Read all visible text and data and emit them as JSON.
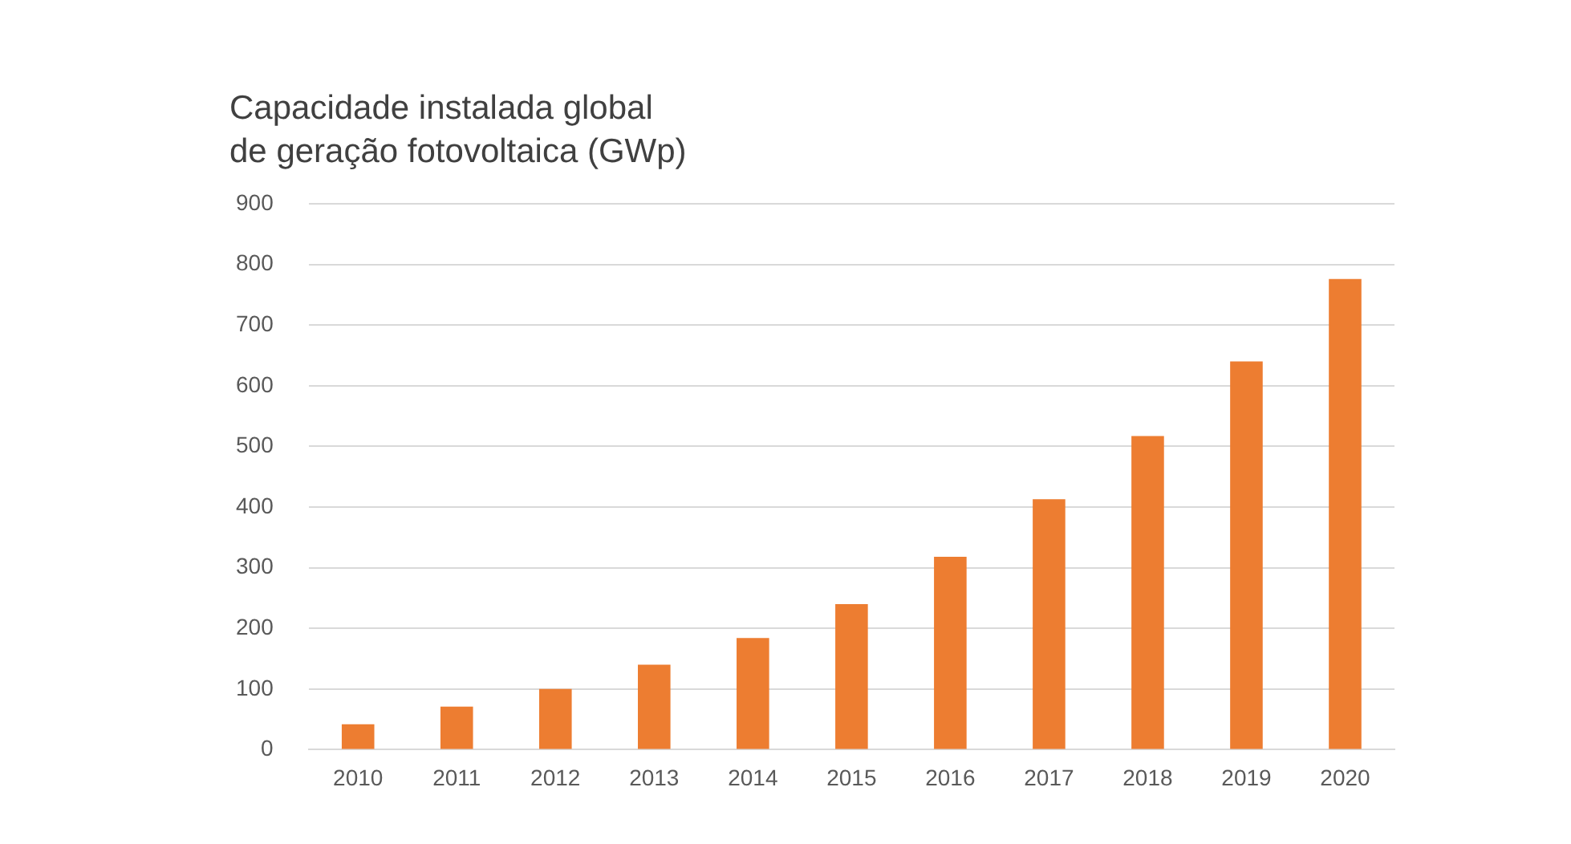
{
  "chart_data": {
    "type": "bar",
    "title": "Capacidade instalada global\nde geração fotovoltaica (GWp)",
    "categories": [
      "2010",
      "2011",
      "2012",
      "2013",
      "2014",
      "2015",
      "2016",
      "2017",
      "2018",
      "2019",
      "2020"
    ],
    "values": [
      42,
      71,
      100,
      140,
      184,
      240,
      318,
      413,
      517,
      640,
      776
    ],
    "color": "#ed7d31",
    "ylim": [
      0,
      900
    ],
    "yticks": [
      0,
      100,
      200,
      300,
      400,
      500,
      600,
      700,
      800,
      900
    ],
    "grid": "y"
  }
}
